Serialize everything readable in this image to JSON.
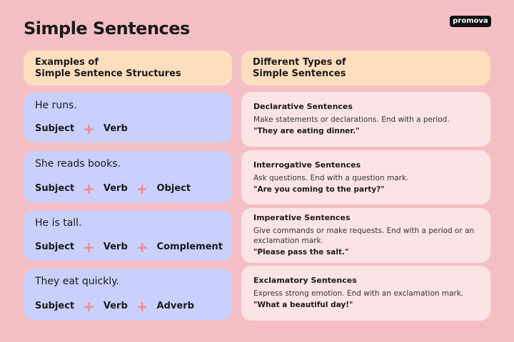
{
  "title": "Simple Sentences",
  "logo": "promova",
  "left_header": [
    "Examples of",
    "Simple Sentence Structures"
  ],
  "right_header": [
    "Different Types of",
    "Simple Sentences"
  ],
  "examples": [
    {
      "sentence": "He runs.",
      "parts": [
        "Subject",
        "Verb"
      ]
    },
    {
      "sentence": "She reads books.",
      "parts": [
        "Subject",
        "Verb",
        "Object"
      ]
    },
    {
      "sentence": "He is tall.",
      "parts": [
        "Subject",
        "Verb",
        "Complement"
      ]
    },
    {
      "sentence": "They eat quickly.",
      "parts": [
        "Subject",
        "Verb",
        "Adverb"
      ]
    }
  ],
  "types": [
    {
      "name": "Declarative Sentences",
      "desc": "Make statements or declarations. End with a period.",
      "example": "\"They are eating dinner.\""
    },
    {
      "name": "Interrogative Sentences",
      "desc": "Ask questions. End with a question mark.",
      "example": "\"Are you coming to the party?\""
    },
    {
      "name": "Imperative Sentences",
      "desc": "Give commands or make requests. End with a period or an exclamation mark.",
      "example": "\"Please pass the salt.\""
    },
    {
      "name": "Exclamatory Sentences",
      "desc": "Express strong emotion. End with an exclamation mark.",
      "example": "\"What a beautiful day!\""
    }
  ],
  "plus_symbol": "+",
  "colors": {
    "background": "#f4bfc4",
    "header": "#fddfc0",
    "example_card": "#c9d0fb",
    "type_card": "#fce4e6",
    "plus": "#f2898a"
  }
}
